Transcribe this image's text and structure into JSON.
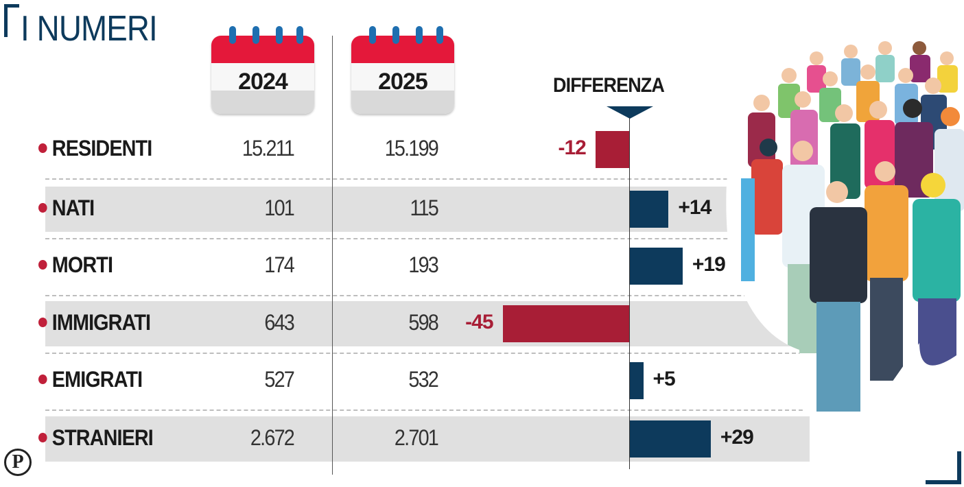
{
  "header": {
    "title": "I NUMERI",
    "publisher_logo": "P"
  },
  "colors": {
    "brand_navy": "#0d3a5c",
    "negative": "#a81e36",
    "positive": "#0d3a5c",
    "calendar_red": "#e4183a",
    "band_gray": "#e0e0e0"
  },
  "chart_data": {
    "type": "table",
    "title": "I NUMERI",
    "columns": [
      "2024",
      "2025",
      "DIFFERENZA"
    ],
    "diff_header": "DIFFERENZA",
    "categories": [
      "RESIDENTI",
      "NATI",
      "MORTI",
      "IMMIGRATI",
      "EMIGRATI",
      "STRANIERI"
    ],
    "series": [
      {
        "name": "2024",
        "values": [
          "15.211",
          "101",
          "174",
          "643",
          "527",
          "2.672"
        ]
      },
      {
        "name": "2025",
        "values": [
          "15.199",
          "115",
          "193",
          "598",
          "532",
          "2.701"
        ]
      },
      {
        "name": "DIFFERENZA",
        "values": [
          -12,
          14,
          19,
          -45,
          5,
          29
        ],
        "labels": [
          "-12",
          "+14",
          "+19",
          "-45",
          "+5",
          "+29"
        ]
      }
    ],
    "diff_chart": {
      "type": "bar",
      "orientation": "horizontal",
      "baseline": 0,
      "range": [
        -45,
        29
      ]
    },
    "shaded_rows": [
      "NATI",
      "IMMIGRATI",
      "STRANIERI"
    ]
  },
  "illustration": {
    "icon": "crowd-of-people-illustration"
  }
}
